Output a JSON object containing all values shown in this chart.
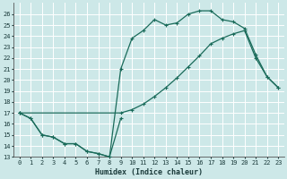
{
  "xlabel": "Humidex (Indice chaleur)",
  "bg_color": "#cde8e8",
  "line_color": "#1a6b5a",
  "grid_color": "#b8d8d8",
  "xlim": [
    -0.5,
    23.5
  ],
  "ylim": [
    13,
    27
  ],
  "xticks": [
    0,
    1,
    2,
    3,
    4,
    5,
    6,
    7,
    8,
    9,
    10,
    11,
    12,
    13,
    14,
    15,
    16,
    17,
    18,
    19,
    20,
    21,
    22,
    23
  ],
  "yticks": [
    13,
    14,
    15,
    16,
    17,
    18,
    19,
    20,
    21,
    22,
    23,
    24,
    25,
    26
  ],
  "series_zigzag_x": [
    0,
    1,
    2,
    3,
    4,
    5,
    6,
    7,
    8,
    9
  ],
  "series_zigzag_y": [
    17,
    16.5,
    15,
    14.8,
    14.2,
    14.2,
    13.5,
    13.3,
    13.0,
    16.5
  ],
  "series_high_x": [
    0,
    1,
    2,
    3,
    4,
    5,
    6,
    7,
    8,
    9,
    10,
    11,
    12,
    13,
    14,
    15,
    16,
    17,
    18,
    19,
    20,
    21,
    22,
    23
  ],
  "series_high_y": [
    17,
    16.5,
    15,
    14.8,
    14.2,
    14.2,
    13.5,
    13.3,
    13.0,
    21.0,
    23.8,
    24.5,
    25.5,
    25.0,
    25.2,
    26.0,
    26.3,
    26.3,
    25.5,
    25.3,
    24.7,
    22.3,
    20.3,
    19.3
  ],
  "series_diag_x": [
    0,
    9,
    10,
    11,
    12,
    13,
    14,
    15,
    16,
    17,
    18,
    19,
    20,
    21,
    22,
    23
  ],
  "series_diag_y": [
    17,
    17.0,
    17.3,
    17.8,
    18.5,
    19.3,
    20.2,
    21.2,
    22.2,
    23.3,
    23.8,
    24.2,
    24.5,
    22.0,
    20.3,
    19.3
  ]
}
